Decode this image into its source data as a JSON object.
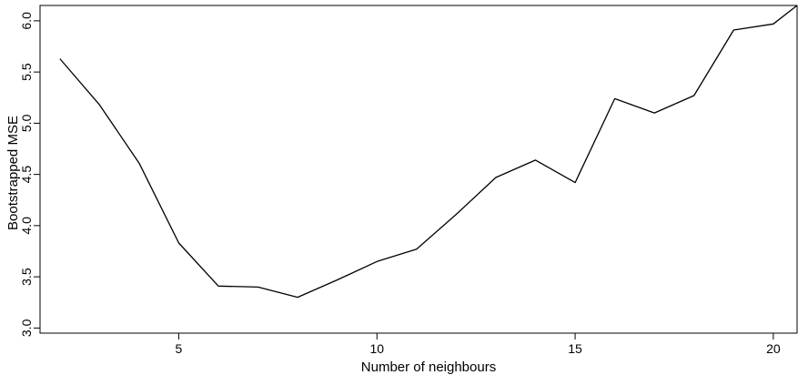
{
  "chart_data": {
    "type": "line",
    "title": "",
    "xlabel": "Number of neighbours",
    "ylabel": "Bootstrapped MSE",
    "xlim": [
      1.5,
      20.6
    ],
    "ylim": [
      2.95,
      6.15
    ],
    "xticks": [
      5,
      10,
      15,
      20
    ],
    "yticks": [
      3.0,
      3.5,
      4.0,
      4.5,
      5.0,
      5.5,
      6.0
    ],
    "grid": false,
    "series": [
      {
        "x": [
          2,
          3,
          4,
          5,
          6,
          7,
          8,
          9,
          10,
          11,
          12,
          13,
          14,
          15,
          16,
          17,
          18,
          19,
          20,
          20.6
        ],
        "values": [
          5.63,
          5.18,
          4.61,
          3.83,
          3.41,
          3.4,
          3.3,
          3.47,
          3.65,
          3.77,
          4.11,
          4.47,
          4.64,
          4.42,
          5.24,
          5.1,
          5.27,
          5.91,
          5.97,
          6.15
        ]
      }
    ],
    "colors": {
      "line": "#000000",
      "axis": "#000000",
      "background": "#ffffff"
    }
  }
}
